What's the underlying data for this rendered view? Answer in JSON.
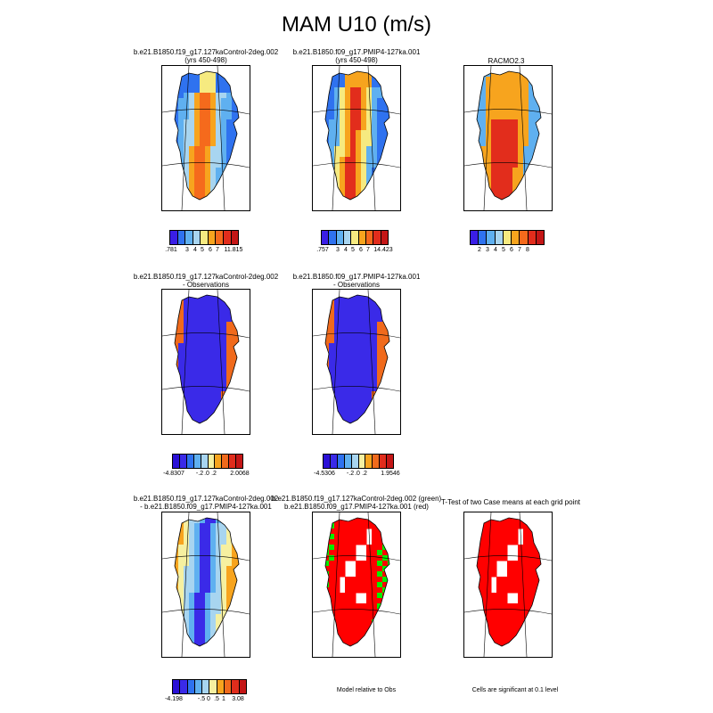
{
  "title": "MAM U10 (m/s)",
  "colors": {
    "wind": [
      "#3a1ee6",
      "#2f72ef",
      "#5fb0f0",
      "#a8d5f0",
      "#f6ea80",
      "#f7a41e",
      "#f56a1c",
      "#e22d1c",
      "#c41616"
    ],
    "diff": [
      "#2a10d6",
      "#3a2ae8",
      "#2e72ef",
      "#5fb0f0",
      "#a8d5f0",
      "#f6f0a0",
      "#f7a41e",
      "#f06a1c",
      "#e02d1c",
      "#c41616"
    ],
    "sig_red": "#ff0000",
    "sig_green": "#00ee00"
  },
  "panels": {
    "p1": {
      "title_lines": [
        "b.e21.B1850.f19_g17.127kaControl-2deg.002",
        "(yrs 450-498)"
      ]
    },
    "p2": {
      "title_lines": [
        "b.e21.B1850.f09_g17.PMIP4-127ka.001",
        "(yrs 450-498)"
      ]
    },
    "p3": {
      "title_lines": [
        "RACMO2.3"
      ]
    },
    "p4": {
      "title_lines": [
        "b.e21.B1850.f19_g17.127kaControl-2deg.002",
        "- Observations"
      ]
    },
    "p5": {
      "title_lines": [
        "b.e21.B1850.f09_g17.PMIP4-127ka.001",
        "- Observations"
      ]
    },
    "p7": {
      "title_lines": [
        "b.e21.B1850.f19_g17.127kaControl-2deg.002",
        "- b.e21.B1850.f09_g17.PMIP4-127ka.001"
      ]
    },
    "p8": {
      "title_lines": [
        "b.e21.B1850.f19_g17.127kaControl-2deg.002 (green)",
        "b.e21.B1850.f09_g17.PMIP4-127ka.001 (red)"
      ]
    },
    "p9": {
      "title_lines": [
        "T-Test of two Case means at each grid point"
      ]
    }
  },
  "colorbars": {
    "cb1": {
      "labels": [
        ".781",
        "3",
        "4",
        "5",
        "6",
        "7",
        "11.815"
      ]
    },
    "cb2": {
      "labels": [
        ".757",
        "3",
        "4",
        "5",
        "6",
        "7",
        "14.423"
      ]
    },
    "cb3": {
      "labels": [
        "2",
        "3",
        "4",
        "5",
        "6",
        "7",
        "8"
      ]
    },
    "cb4": {
      "labels": [
        "-4.8307",
        "-.2",
        ".0",
        ".2",
        "2.0068"
      ]
    },
    "cb5": {
      "labels": [
        "-4.5306",
        "-.2",
        ".0",
        ".2",
        "1.9546"
      ]
    },
    "cb7": {
      "labels": [
        "-4.198",
        "-.5",
        "0",
        ".5",
        "1",
        "3.08"
      ]
    }
  },
  "notes": {
    "model_rel_obs": "Model relative to Obs",
    "cells_sig": "Cells are significant at 0.1 level"
  },
  "chart_data": [
    {
      "type": "heatmap",
      "title": "b.e21.B1850.f19_g17.127kaControl-2deg.002 (yrs 450-498)",
      "value_range": [
        0.781,
        11.815
      ],
      "levels": [
        3,
        4,
        5,
        6,
        7
      ]
    },
    {
      "type": "heatmap",
      "title": "b.e21.B1850.f09_g17.PMIP4-127ka.001 (yrs 450-498)",
      "value_range": [
        0.757,
        14.423
      ],
      "levels": [
        3,
        4,
        5,
        6,
        7
      ]
    },
    {
      "type": "heatmap",
      "title": "RACMO2.3",
      "levels": [
        2,
        3,
        4,
        5,
        6,
        7,
        8
      ]
    },
    {
      "type": "heatmap",
      "title": "b.e21.B1850.f19_g17.127kaControl-2deg.002 - Observations",
      "value_range": [
        -4.8307,
        2.0068
      ],
      "levels": [
        -0.2,
        0.0,
        0.2
      ]
    },
    {
      "type": "heatmap",
      "title": "b.e21.B1850.f09_g17.PMIP4-127ka.001 - Observations",
      "value_range": [
        -4.5306,
        1.9546
      ],
      "levels": [
        -0.2,
        0.0,
        0.2
      ]
    },
    {
      "type": "heatmap",
      "title": "b.e21.B1850.f19_g17.127kaControl-2deg.002 - b.e21.B1850.f09_g17.PMIP4-127ka.001",
      "value_range": [
        -4.198,
        3.08
      ],
      "levels": [
        -0.5,
        0,
        0.5,
        1
      ]
    },
    {
      "type": "heatmap",
      "title": "Model relative to Obs"
    },
    {
      "type": "heatmap",
      "title": "T-Test of two Case means at each grid point"
    }
  ]
}
